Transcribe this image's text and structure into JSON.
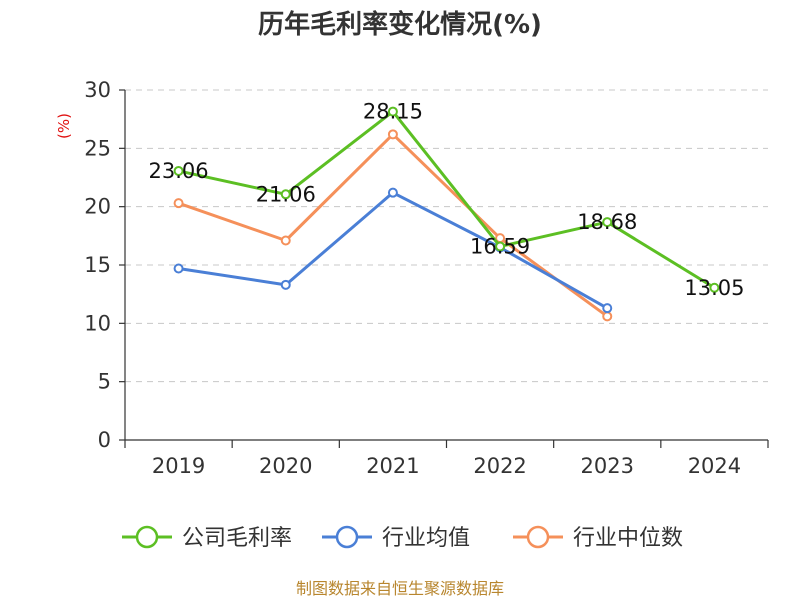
{
  "chart_data": {
    "type": "line",
    "title": "历年毛利率变化情况(%)",
    "ylabel": "(%)",
    "xlabel": "",
    "categories": [
      "2019",
      "2020",
      "2021",
      "2022",
      "2023",
      "2024"
    ],
    "ylim": [
      0,
      30
    ],
    "yticks": [
      0,
      5,
      10,
      15,
      20,
      25,
      30
    ],
    "grid": true,
    "legend_position": "bottom",
    "series": [
      {
        "name": "公司毛利率",
        "color": "#5cbf23",
        "values": [
          23.06,
          21.06,
          28.15,
          16.59,
          18.68,
          13.05
        ],
        "data_labels": [
          "23.06",
          "21.06",
          "28.15",
          "16.59",
          "18.68",
          "13.05"
        ]
      },
      {
        "name": "行业均值",
        "color": "#4a7fd6",
        "values": [
          14.7,
          13.3,
          21.2,
          16.5,
          11.3,
          null
        ]
      },
      {
        "name": "行业中位数",
        "color": "#f5905a",
        "values": [
          20.3,
          17.1,
          26.2,
          17.3,
          10.6,
          null
        ]
      }
    ],
    "source": "制图数据来自恒生聚源数据库"
  }
}
